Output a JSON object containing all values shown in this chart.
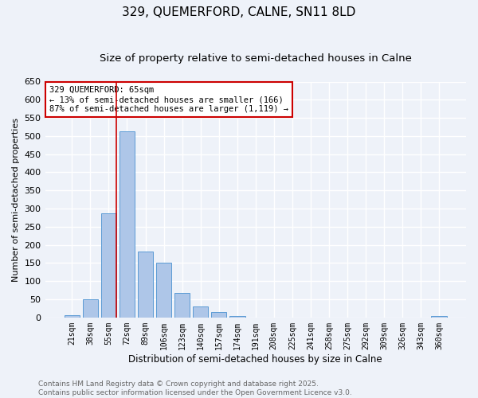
{
  "title": "329, QUEMERFORD, CALNE, SN11 8LD",
  "subtitle": "Size of property relative to semi-detached houses in Calne",
  "xlabel": "Distribution of semi-detached houses by size in Calne",
  "ylabel": "Number of semi-detached properties",
  "categories": [
    "21sqm",
    "38sqm",
    "55sqm",
    "72sqm",
    "89sqm",
    "106sqm",
    "123sqm",
    "140sqm",
    "157sqm",
    "174sqm",
    "191sqm",
    "208sqm",
    "225sqm",
    "241sqm",
    "258sqm",
    "275sqm",
    "292sqm",
    "309sqm",
    "326sqm",
    "343sqm",
    "360sqm"
  ],
  "values": [
    7,
    50,
    288,
    513,
    181,
    150,
    68,
    30,
    15,
    5,
    0,
    0,
    0,
    0,
    0,
    0,
    0,
    0,
    0,
    0,
    5
  ],
  "bar_color": "#aec6e8",
  "bar_edge_color": "#5b9bd5",
  "background_color": "#eef2f9",
  "grid_color": "#ffffff",
  "vline_color": "#cc0000",
  "annotation_text": "329 QUEMERFORD: 65sqm\n← 13% of semi-detached houses are smaller (166)\n87% of semi-detached houses are larger (1,119) →",
  "annotation_box_color": "#cc0000",
  "ylim": [
    0,
    650
  ],
  "yticks": [
    0,
    50,
    100,
    150,
    200,
    250,
    300,
    350,
    400,
    450,
    500,
    550,
    600,
    650
  ],
  "footer_line1": "Contains HM Land Registry data © Crown copyright and database right 2025.",
  "footer_line2": "Contains public sector information licensed under the Open Government Licence v3.0.",
  "title_fontsize": 11,
  "subtitle_fontsize": 9.5,
  "footer_fontsize": 6.5
}
